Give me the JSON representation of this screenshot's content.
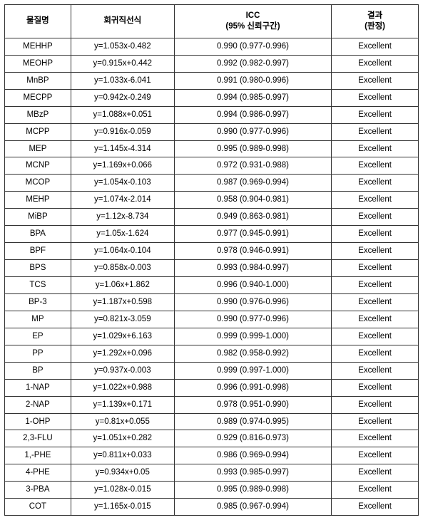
{
  "table": {
    "headers": {
      "h1": "물질명",
      "h2": "회귀직선식",
      "h3": "ICC\n(95% 신뢰구간)",
      "h4": "결과\n(판정)"
    },
    "rows": [
      {
        "name": "MEHHP",
        "eq": "y=1.053x-0.482",
        "icc": "0.990 (0.977-0.996)",
        "res": "Excellent"
      },
      {
        "name": "MEOHP",
        "eq": "y=0.915x+0.442",
        "icc": "0.992 (0.982-0.997)",
        "res": "Excellent"
      },
      {
        "name": "MnBP",
        "eq": "y=1.033x-6.041",
        "icc": "0.991 (0.980-0.996)",
        "res": "Excellent"
      },
      {
        "name": "MECPP",
        "eq": "y=0.942x-0.249",
        "icc": "0.994 (0.985-0.997)",
        "res": "Excellent"
      },
      {
        "name": "MBzP",
        "eq": "y=1.088x+0.051",
        "icc": "0.994 (0.986-0.997)",
        "res": "Excellent"
      },
      {
        "name": "MCPP",
        "eq": "y=0.916x-0.059",
        "icc": "0.990 (0.977-0.996)",
        "res": "Excellent"
      },
      {
        "name": "MEP",
        "eq": "y=1.145x-4.314",
        "icc": "0.995 (0.989-0.998)",
        "res": "Excellent"
      },
      {
        "name": "MCNP",
        "eq": "y=1.169x+0.066",
        "icc": "0.972 (0.931-0.988)",
        "res": "Excellent"
      },
      {
        "name": "MCOP",
        "eq": "y=1.054x-0.103",
        "icc": "0.987 (0.969-0.994)",
        "res": "Excellent"
      },
      {
        "name": "MEHP",
        "eq": "y=1.074x-2.014",
        "icc": "0.958 (0.904-0.981)",
        "res": "Excellent"
      },
      {
        "name": "MiBP",
        "eq": "y=1.12x-8.734",
        "icc": "0.949 (0.863-0.981)",
        "res": "Excellent"
      },
      {
        "name": "BPA",
        "eq": "y=1.05x-1.624",
        "icc": "0.977 (0.945-0.991)",
        "res": "Excellent"
      },
      {
        "name": "BPF",
        "eq": "y=1.064x-0.104",
        "icc": "0.978 (0.946-0.991)",
        "res": "Excellent"
      },
      {
        "name": "BPS",
        "eq": "y=0.858x-0.003",
        "icc": "0.993 (0.984-0.997)",
        "res": "Excellent"
      },
      {
        "name": "TCS",
        "eq": "y=1.06x+1.862",
        "icc": "0.996 (0.940-1.000)",
        "res": "Excellent"
      },
      {
        "name": "BP-3",
        "eq": "y=1.187x+0.598",
        "icc": "0.990 (0.976-0.996)",
        "res": "Excellent"
      },
      {
        "name": "MP",
        "eq": "y=0.821x-3.059",
        "icc": "0.990 (0.977-0.996)",
        "res": "Excellent"
      },
      {
        "name": "EP",
        "eq": "y=1.029x+6.163",
        "icc": "0.999 (0.999-1.000)",
        "res": "Excellent"
      },
      {
        "name": "PP",
        "eq": "y=1.292x+0.096",
        "icc": "0.982 (0.958-0.992)",
        "res": "Excellent"
      },
      {
        "name": "BP",
        "eq": "y=0.937x-0.003",
        "icc": "0.999 (0.997-1.000)",
        "res": "Excellent"
      },
      {
        "name": "1-NAP",
        "eq": "y=1.022x+0.988",
        "icc": "0.996 (0.991-0.998)",
        "res": "Excellent"
      },
      {
        "name": "2-NAP",
        "eq": "y=1.139x+0.171",
        "icc": "0.978 (0.951-0.990)",
        "res": "Excellent"
      },
      {
        "name": "1-OHP",
        "eq": "y=0.81x+0.055",
        "icc": "0.989 (0.974-0.995)",
        "res": "Excellent"
      },
      {
        "name": "2,3-FLU",
        "eq": "y=1.051x+0.282",
        "icc": "0.929 (0.816-0.973)",
        "res": "Excellent"
      },
      {
        "name": "1,-PHE",
        "eq": "y=0.811x+0.033",
        "icc": "0.986 (0.969-0.994)",
        "res": "Excellent"
      },
      {
        "name": "4-PHE",
        "eq": "y=0.934x+0.05",
        "icc": "0.993 (0.985-0.997)",
        "res": "Excellent"
      },
      {
        "name": "3-PBA",
        "eq": "y=1.028x-0.015",
        "icc": "0.995 (0.989-0.998)",
        "res": "Excellent"
      },
      {
        "name": "COT",
        "eq": "y=1.165x-0.015",
        "icc": "0.985 (0.967-0.994)",
        "res": "Excellent"
      }
    ]
  }
}
